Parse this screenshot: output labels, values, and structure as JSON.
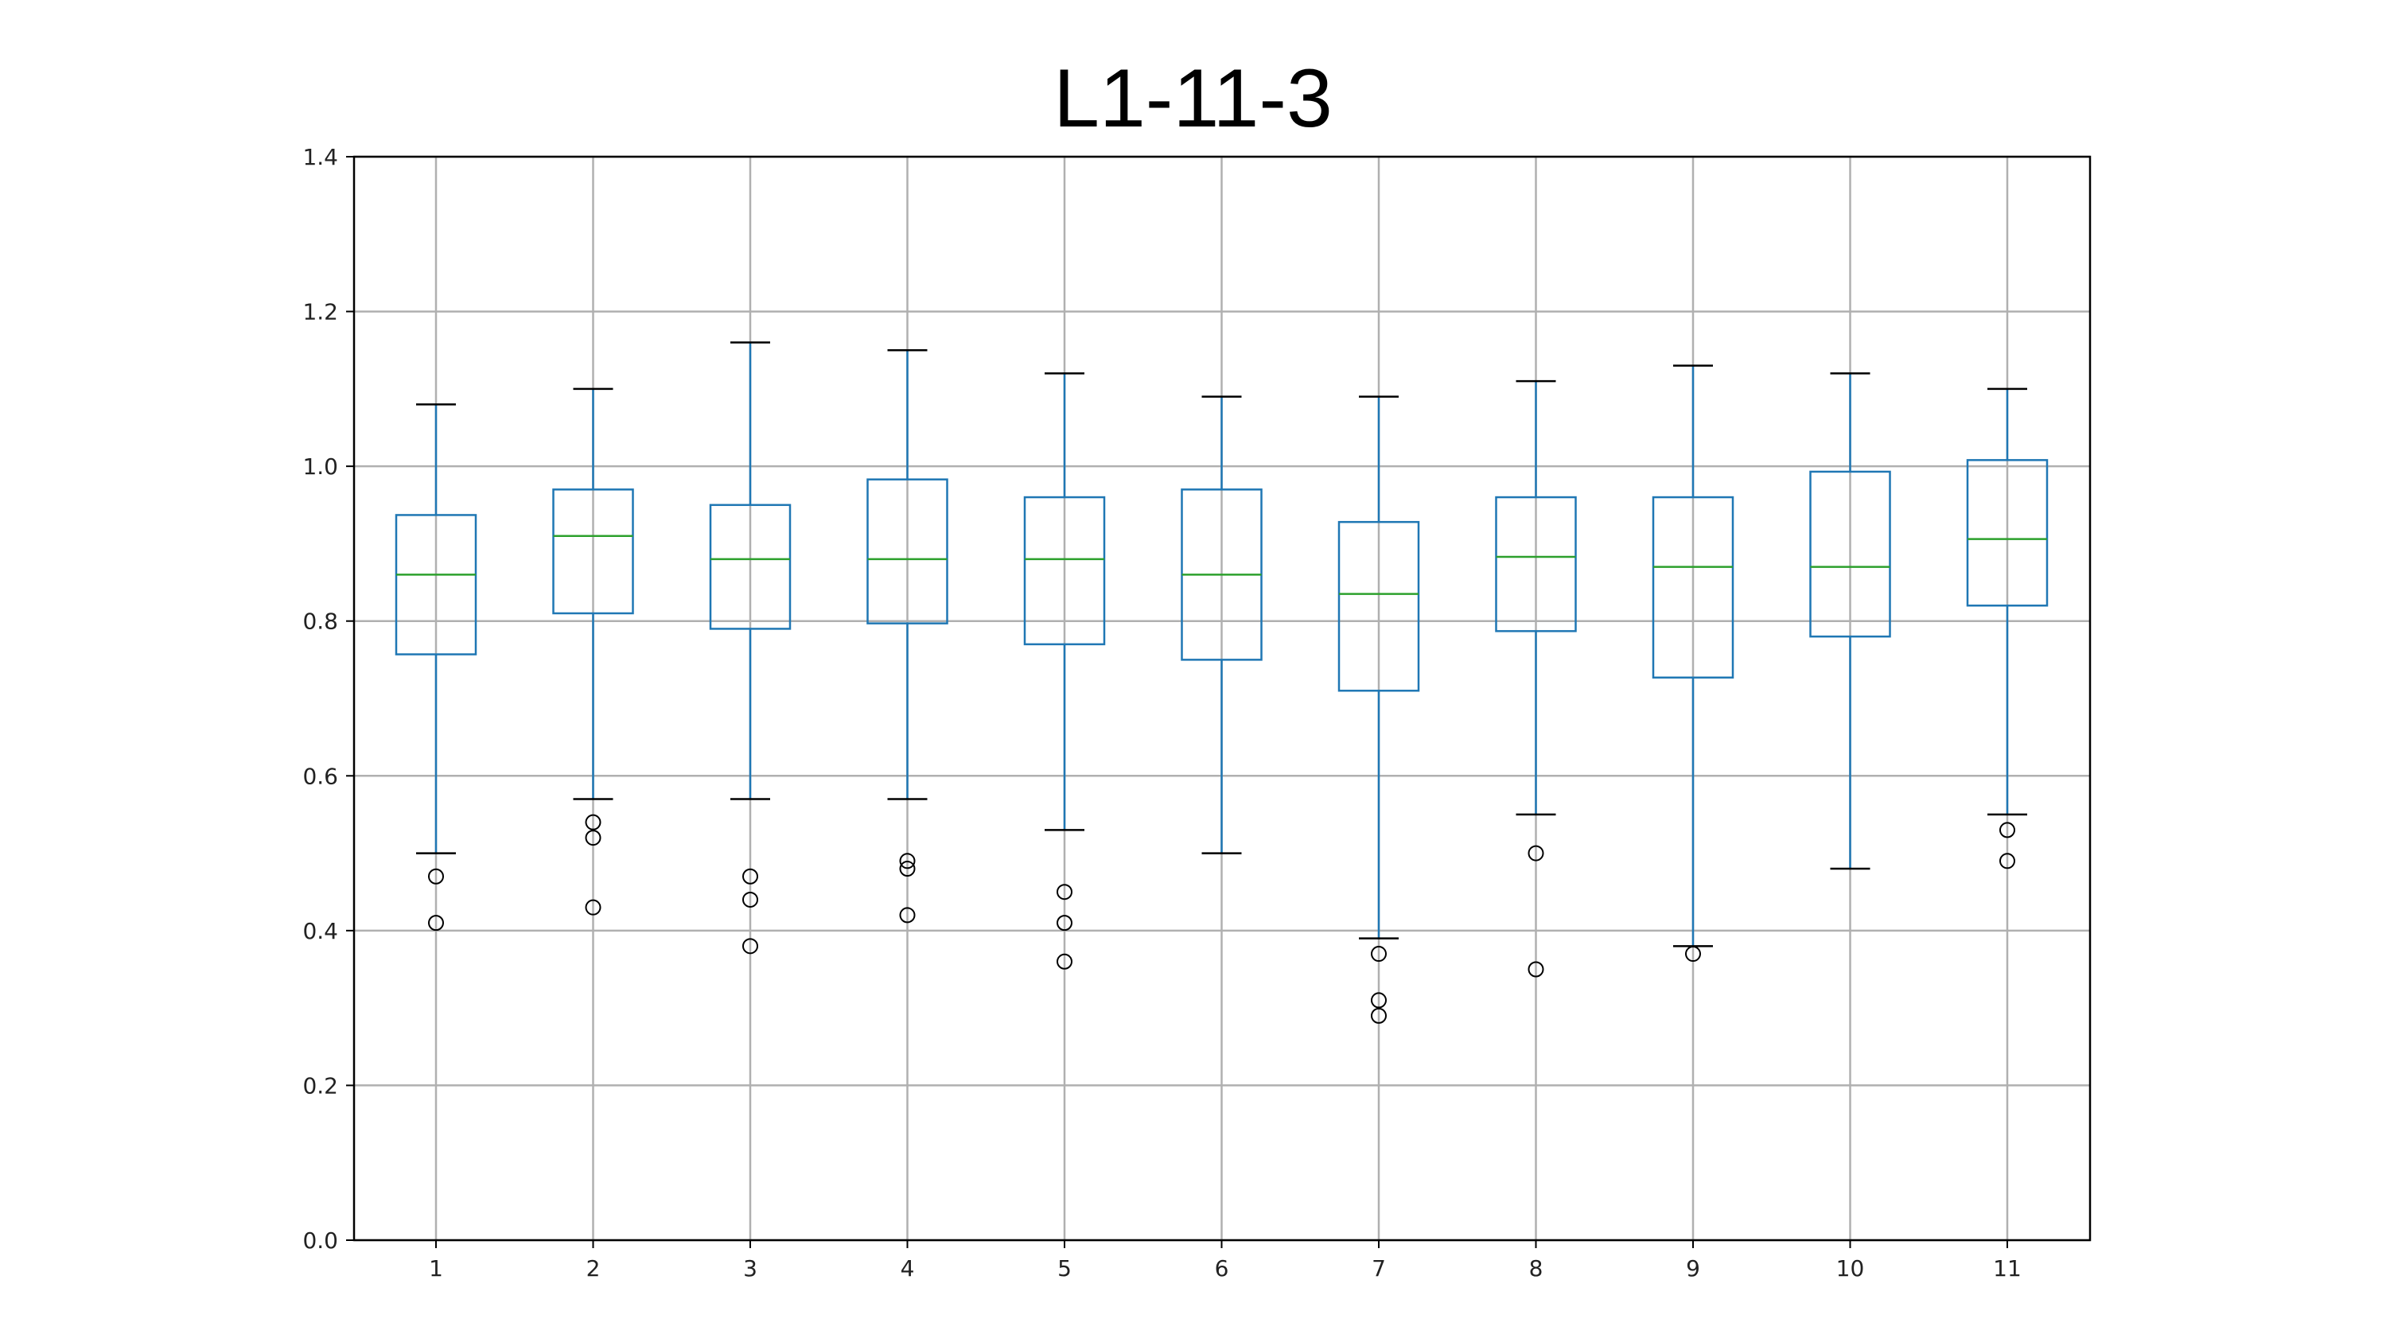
{
  "chart_data": {
    "type": "box",
    "title": "L1-11-3",
    "xlabel": "",
    "ylabel": "",
    "ylim": [
      0.0,
      1.4
    ],
    "yticks": [
      "0.0",
      "0.2",
      "0.4",
      "0.6",
      "0.8",
      "1.0",
      "1.2",
      "1.4"
    ],
    "grid": true,
    "colors": {
      "box": "#1f77b4",
      "median": "#2ca02c",
      "whisker_cap": "#000000",
      "flier": "#000000",
      "grid": "#b0b0b0"
    },
    "categories": [
      "1",
      "2",
      "3",
      "4",
      "5",
      "6",
      "7",
      "8",
      "9",
      "10",
      "11"
    ],
    "boxes": [
      {
        "label": "1",
        "whislo": 0.5,
        "q1": 0.757,
        "med": 0.86,
        "q3": 0.937,
        "whishi": 1.08,
        "fliers": [
          0.47,
          0.41
        ]
      },
      {
        "label": "2",
        "whislo": 0.57,
        "q1": 0.81,
        "med": 0.91,
        "q3": 0.97,
        "whishi": 1.1,
        "fliers": [
          0.54,
          0.52,
          0.43
        ]
      },
      {
        "label": "3",
        "whislo": 0.57,
        "q1": 0.79,
        "med": 0.88,
        "q3": 0.95,
        "whishi": 1.16,
        "fliers": [
          0.47,
          0.44,
          0.38
        ]
      },
      {
        "label": "4",
        "whislo": 0.57,
        "q1": 0.797,
        "med": 0.88,
        "q3": 0.983,
        "whishi": 1.15,
        "fliers": [
          0.49,
          0.48,
          0.42
        ]
      },
      {
        "label": "5",
        "whislo": 0.53,
        "q1": 0.77,
        "med": 0.88,
        "q3": 0.96,
        "whishi": 1.12,
        "fliers": [
          0.45,
          0.41,
          0.36
        ]
      },
      {
        "label": "6",
        "whislo": 0.5,
        "q1": 0.75,
        "med": 0.86,
        "q3": 0.97,
        "whishi": 1.09,
        "fliers": []
      },
      {
        "label": "7",
        "whislo": 0.39,
        "q1": 0.71,
        "med": 0.835,
        "q3": 0.928,
        "whishi": 1.09,
        "fliers": [
          0.37,
          0.31,
          0.29
        ]
      },
      {
        "label": "8",
        "whislo": 0.55,
        "q1": 0.787,
        "med": 0.883,
        "q3": 0.96,
        "whishi": 1.11,
        "fliers": [
          0.5,
          0.35
        ]
      },
      {
        "label": "9",
        "whislo": 0.38,
        "q1": 0.727,
        "med": 0.87,
        "q3": 0.96,
        "whishi": 1.13,
        "fliers": [
          0.37
        ]
      },
      {
        "label": "10",
        "whislo": 0.48,
        "q1": 0.78,
        "med": 0.87,
        "q3": 0.993,
        "whishi": 1.12,
        "fliers": []
      },
      {
        "label": "11",
        "whislo": 0.55,
        "q1": 0.82,
        "med": 0.906,
        "q3": 1.008,
        "whishi": 1.1,
        "fliers": [
          0.53,
          0.49
        ]
      }
    ]
  }
}
